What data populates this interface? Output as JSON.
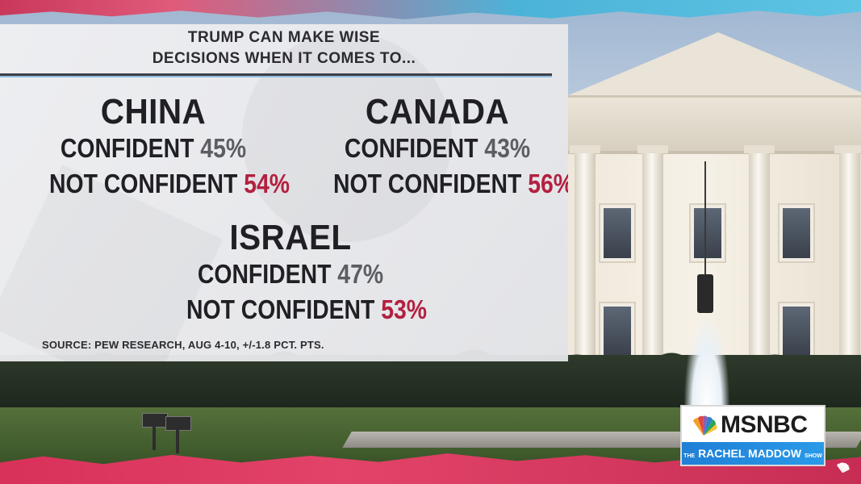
{
  "graphic": {
    "headline_line1": "TRUMP CAN MAKE WISE",
    "headline_line2": "DECISIONS WHEN IT COMES TO...",
    "regions": [
      {
        "country": "CHINA",
        "confident_label": "CONFIDENT",
        "confident_value": "45%",
        "not_label": "NOT CONFIDENT",
        "not_value": "54%"
      },
      {
        "country": "CANADA",
        "confident_label": "CONFIDENT",
        "confident_value": "43%",
        "not_label": "NOT CONFIDENT",
        "not_value": "56%"
      },
      {
        "country": "ISRAEL",
        "confident_label": "CONFIDENT",
        "confident_value": "47%",
        "not_label": "NOT CONFIDENT",
        "not_value": "53%"
      }
    ],
    "source": "SOURCE: PEW RESEARCH, AUG 4-10, +/-1.8 PCT. PTS."
  },
  "bug": {
    "network": "MSNBC",
    "show_prefix": "THE",
    "show_name": "RACHEL MADDOW",
    "show_suffix": "SHOW"
  },
  "colors": {
    "not_confident_accent": "#b3203f",
    "confident_value": "#5c5d63",
    "panel": "#e8e8ea",
    "bug_band": "#2a9ae8"
  },
  "icons": [
    "peacock-logo-icon",
    "peacock-corner-icon"
  ]
}
